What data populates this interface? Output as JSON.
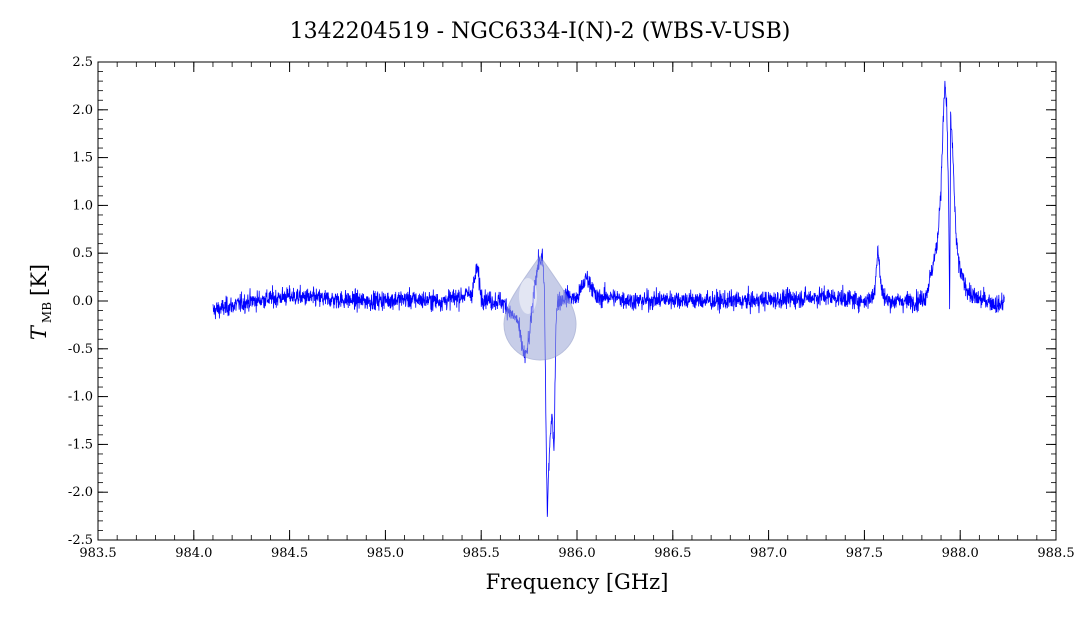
{
  "chart_data": {
    "type": "line",
    "title": "1342204519 - NGC6334-I(N)-2 (WBS-V-USB)",
    "xlabel": "Frequency [GHz]",
    "ylabel": {
      "main": "T",
      "sub": "MB",
      "unit": "[K]"
    },
    "xlim": [
      983.5,
      988.5
    ],
    "ylim": [
      -2.5,
      2.5
    ],
    "x_ticks": [
      983.5,
      984.0,
      984.5,
      985.0,
      985.5,
      986.0,
      986.5,
      987.0,
      987.5,
      988.0,
      988.5
    ],
    "x_tick_labels": [
      "983.5",
      "984.0",
      "984.5",
      "985.0",
      "985.5",
      "986.0",
      "986.5",
      "987.0",
      "987.5",
      "988.0",
      "988.5"
    ],
    "y_ticks": [
      -2.5,
      -2.0,
      -1.5,
      -1.0,
      -0.5,
      0.0,
      0.5,
      1.0,
      1.5,
      2.0,
      2.5
    ],
    "y_tick_labels": [
      "-2.5",
      "-2.0",
      "-1.5",
      "-1.0",
      "-0.5",
      "0.0",
      "0.5",
      "1.0",
      "1.5",
      "2.0",
      "2.5"
    ],
    "grid": false,
    "series": [
      {
        "color": "#0000ff",
        "x": [
          984.1,
          984.3,
          984.5,
          984.7,
          984.9,
          985.1,
          985.3,
          985.45,
          985.48,
          985.5,
          985.55,
          985.6,
          985.63,
          985.66,
          985.69,
          985.71,
          985.73,
          985.75,
          985.78,
          985.8,
          985.82,
          985.83,
          985.84,
          985.845,
          985.85,
          985.86,
          985.87,
          985.88,
          985.89,
          985.9,
          985.95,
          986.0,
          986.05,
          986.08,
          986.1,
          986.15,
          986.3,
          986.5,
          986.7,
          986.9,
          987.1,
          987.3,
          987.5,
          987.55,
          987.57,
          987.59,
          987.62,
          987.7,
          987.78,
          987.82,
          987.85,
          987.88,
          987.9,
          987.91,
          987.92,
          987.93,
          987.94,
          987.945,
          987.95,
          987.96,
          987.97,
          987.98,
          988.0,
          988.03,
          988.06,
          988.1,
          988.15,
          988.2,
          988.23
        ],
        "y": [
          -0.1,
          0.0,
          0.05,
          0.02,
          0.0,
          0.02,
          0.0,
          0.08,
          0.35,
          0.05,
          0.0,
          0.0,
          -0.05,
          -0.15,
          -0.2,
          -0.45,
          -0.6,
          -0.4,
          0.2,
          0.4,
          0.45,
          0.1,
          -1.6,
          -2.25,
          -1.9,
          -1.4,
          -1.2,
          -1.6,
          -0.2,
          0.0,
          0.05,
          0.02,
          0.25,
          0.15,
          0.02,
          0.05,
          0.0,
          0.02,
          0.0,
          0.0,
          0.02,
          0.05,
          0.0,
          0.05,
          0.55,
          0.1,
          0.0,
          0.0,
          0.0,
          0.05,
          0.3,
          0.6,
          1.2,
          1.8,
          2.28,
          2.0,
          1.0,
          -0.15,
          1.9,
          1.6,
          1.1,
          0.6,
          0.3,
          0.15,
          0.05,
          0.02,
          0.0,
          -0.05,
          0.0
        ],
        "noise_rms": 0.07
      }
    ]
  }
}
